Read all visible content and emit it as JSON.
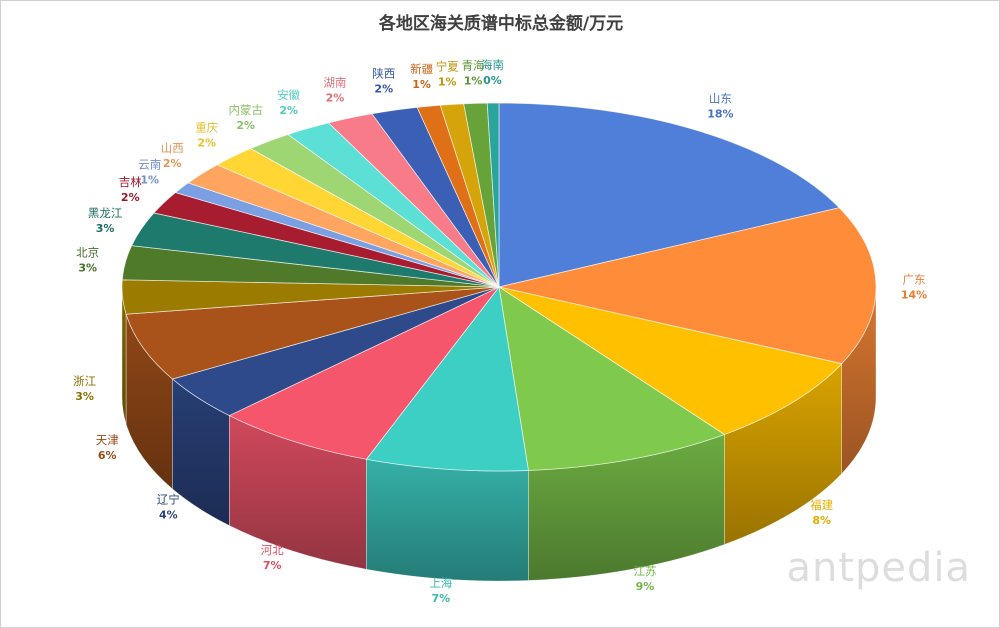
{
  "chart_data": {
    "type": "pie",
    "style": "3d",
    "title": "各地区海关质谱中标总金额/万元",
    "legend": "none",
    "slices": [
      {
        "label": "山东",
        "value": 18,
        "pct": "18%",
        "color": "#4f7fd8"
      },
      {
        "label": "广东",
        "value": 14,
        "pct": "14%",
        "color": "#ff8c38"
      },
      {
        "label": "福建",
        "value": 8,
        "pct": "8%",
        "color": "#ffc000"
      },
      {
        "label": "江苏",
        "value": 9,
        "pct": "9%",
        "color": "#7fc94d"
      },
      {
        "label": "上海",
        "value": 7,
        "pct": "7%",
        "color": "#3ecfc4"
      },
      {
        "label": "河北",
        "value": 7,
        "pct": "7%",
        "color": "#f5566c"
      },
      {
        "label": "辽宁",
        "value": 4,
        "pct": "4%",
        "color": "#2e4a8a"
      },
      {
        "label": "天津",
        "value": 6,
        "pct": "6%",
        "color": "#a9531a"
      },
      {
        "label": "浙江",
        "value": 3,
        "pct": "3%",
        "color": "#9c7c00"
      },
      {
        "label": "北京",
        "value": 3,
        "pct": "3%",
        "color": "#4f7a2a"
      },
      {
        "label": "黑龙江",
        "value": 3,
        "pct": "3%",
        "color": "#1f7a6e"
      },
      {
        "label": "吉林",
        "value": 2,
        "pct": "2%",
        "color": "#a81c30"
      },
      {
        "label": "云南",
        "value": 1,
        "pct": "1%",
        "color": "#7b9fe3"
      },
      {
        "label": "山西",
        "value": 2,
        "pct": "2%",
        "color": "#ffa560"
      },
      {
        "label": "重庆",
        "value": 2,
        "pct": "2%",
        "color": "#ffd633"
      },
      {
        "label": "内蒙古",
        "value": 2,
        "pct": "2%",
        "color": "#9ed673"
      },
      {
        "label": "安徽",
        "value": 2,
        "pct": "2%",
        "color": "#5ce0d6"
      },
      {
        "label": "湖南",
        "value": 2,
        "pct": "2%",
        "color": "#f77b89"
      },
      {
        "label": "陕西",
        "value": 2,
        "pct": "2%",
        "color": "#3a5fb5"
      },
      {
        "label": "新疆",
        "value": 1,
        "pct": "1%",
        "color": "#e07018"
      },
      {
        "label": "宁夏",
        "value": 1,
        "pct": "1%",
        "color": "#d4a40a"
      },
      {
        "label": "青海",
        "value": 1,
        "pct": "1%",
        "color": "#68a33a"
      },
      {
        "label": "海南",
        "value": 0,
        "pct": "0%",
        "color": "#2aa59b"
      }
    ]
  },
  "watermark": "antpedia"
}
